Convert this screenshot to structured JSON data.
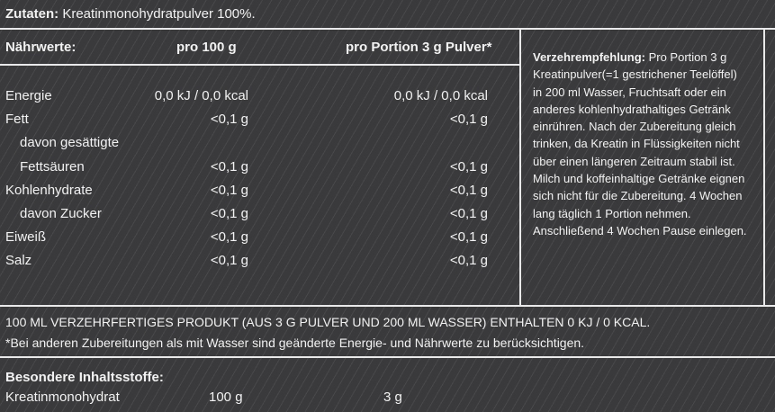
{
  "ingredients": {
    "label": "Zutaten:",
    "text": "Kreatinmonohydratpulver 100%."
  },
  "nutrition_table": {
    "headers": {
      "label": "Nährwerte:",
      "per100": "pro 100 g",
      "perPortion": "pro Portion 3 g Pulver*"
    },
    "rows": [
      {
        "name": "Energie",
        "per100": "0,0 kJ / 0,0 kcal",
        "perPortion": "0,0 kJ / 0,0 kcal"
      },
      {
        "name": "Fett",
        "per100": "<0,1 g",
        "perPortion": "<0,1 g"
      },
      {
        "name": "davon gesättigte",
        "per100": "",
        "perPortion": ""
      },
      {
        "name": "Fettsäuren",
        "per100": "<0,1 g",
        "perPortion": "<0,1 g"
      },
      {
        "name": "Kohlenhydrate",
        "per100": "<0,1 g",
        "perPortion": "<0,1 g"
      },
      {
        "name": "davon Zucker",
        "per100": "<0,1 g",
        "perPortion": "<0,1 g"
      },
      {
        "name": "Eiweiß",
        "per100": "<0,1 g",
        "perPortion": "<0,1 g"
      },
      {
        "name": "Salz",
        "per100": "<0,1 g",
        "perPortion": "<0,1 g"
      }
    ]
  },
  "recommendation": {
    "label": "Verzehrempfehlung:",
    "text": "Pro Portion 3 g Kreatinpulver(=1 gestrichener Teelöffel) in 200 ml Wasser, Fruchtsaft oder ein anderes kohlenhydrathaltiges Getränk einrühren. Nach der Zubereitung gleich trinken, da Kreatin in Flüssigkeiten nicht über einen längeren Zeitraum stabil ist. Milch und koffeinhaltige Getränke eignen sich nicht für die Zubereitung. 4 Wochen lang täglich 1 Portion nehmen.",
    "text2": "Anschließend 4 Wochen Pause einlegen."
  },
  "notes": {
    "line1": "100 ML VERZEHRFERTIGES PRODUKT (AUS 3 G PULVER UND 200 ML WASSER) ENTHALTEN 0 KJ / 0 KCAL.",
    "line2": "*Bei anderen Zubereitungen als mit Wasser sind geänderte Energie- und Nährwerte zu berücksichtigen."
  },
  "special": {
    "label": "Besondere Inhaltsstoffe:",
    "name": "Kreatinmonohydrat",
    "per100": "100 g",
    "perPortion": "3 g"
  }
}
